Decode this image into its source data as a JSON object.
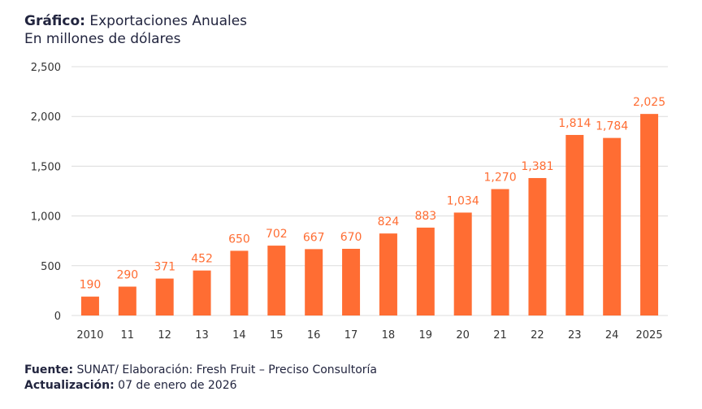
{
  "header": {
    "title_bold": "Gráfico:",
    "title_rest": " Exportaciones Anuales",
    "subtitle": "En millones de dólares"
  },
  "footer": {
    "source_label": "Fuente:",
    "source_text": " SUNAT/ Elaboración: Fresh Fruit – Preciso Consultoría",
    "update_label": "Actualización:",
    "update_text": " 07 de enero de 2026"
  },
  "chart_data": {
    "type": "bar",
    "title": "Exportaciones Anuales",
    "subtitle": "En millones de dólares",
    "categories": [
      "2010",
      "11",
      "12",
      "13",
      "14",
      "15",
      "16",
      "17",
      "18",
      "19",
      "20",
      "21",
      "22",
      "23",
      "24",
      "2025"
    ],
    "values": [
      190,
      290,
      371,
      452,
      650,
      702,
      667,
      670,
      824,
      883,
      1034,
      1270,
      1381,
      1814,
      1784,
      2025
    ],
    "data_labels": [
      "190",
      "290",
      "371",
      "452",
      "650",
      "702",
      "667",
      "670",
      "824",
      "883",
      "1,034",
      "1,270",
      "1,381",
      "1,814",
      "1,784",
      "2,025"
    ],
    "ylim": [
      0,
      2500
    ],
    "yticks": [
      0,
      500,
      1000,
      1500,
      2000,
      2500
    ],
    "ytick_labels": [
      "0",
      "500",
      "1,000",
      "1,500",
      "2,000",
      "2,500"
    ],
    "grid": true,
    "colors": {
      "bar": "#ff6d33",
      "label": "#ff6d33",
      "grid": "#dcdcdc",
      "text": "#22253f"
    }
  }
}
